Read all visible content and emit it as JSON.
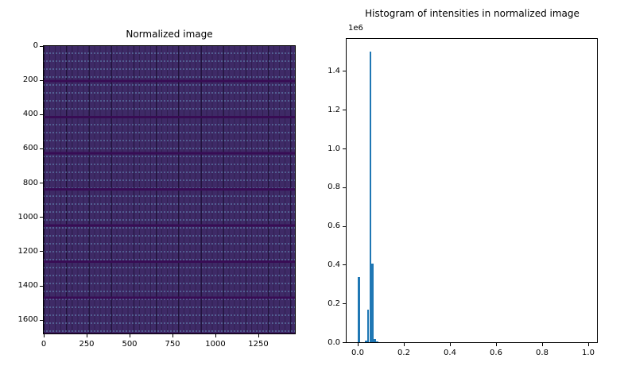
{
  "left_plot": {
    "title": "Normalized image",
    "x_tick_labels": [
      "0",
      "250",
      "500",
      "750",
      "1000",
      "1250"
    ],
    "y_tick_labels": [
      "0",
      "200",
      "400",
      "600",
      "800",
      "1000",
      "1200",
      "1400",
      "1600"
    ]
  },
  "right_plot": {
    "title": "Histogram of intensities in normalized image",
    "offset_label": "1e6",
    "x_tick_labels": [
      "0.0",
      "0.2",
      "0.4",
      "0.6",
      "0.8",
      "1.0"
    ],
    "y_tick_labels": [
      "0.0",
      "0.2",
      "0.4",
      "0.6",
      "0.8",
      "1.0",
      "1.2",
      "1.4"
    ]
  },
  "chart_data": [
    {
      "type": "heatmap",
      "title": "Normalized image",
      "xlabel": "",
      "ylabel": "",
      "xlim": [
        0,
        1460
      ],
      "ylim": [
        1680,
        0
      ],
      "x_ticks": [
        0,
        250,
        500,
        750,
        1000,
        1250
      ],
      "y_ticks": [
        0,
        200,
        400,
        600,
        800,
        1000,
        1200,
        1400,
        1600
      ],
      "description": "Dark purple low-intensity image (viridis colormap near 0.05): periodic grid texture with thin darker vertical lines every ~30 units, stronger vertical lines every ~130 units, dark horizontal bands every ~210 units, and a faint lattice of tiny light-blue dots",
      "colors": {
        "base": "#3e2a66",
        "thin_vline": "#31205a",
        "strong_vline": "#2a1850",
        "horizontal_band": "#380c54",
        "dots": "#6894be"
      }
    },
    {
      "type": "bar",
      "title": "Histogram of intensities in normalized image",
      "xlabel": "",
      "ylabel": "",
      "x": [
        0.0,
        0.03,
        0.04,
        0.05,
        0.06,
        0.07,
        0.08
      ],
      "values": [
        335000,
        8000,
        170000,
        1500000,
        405000,
        18000,
        6000
      ],
      "bin_width": 0.01,
      "bar_color": "#1f77b4",
      "xlim": [
        -0.05,
        1.05
      ],
      "ylim": [
        0,
        1570000
      ],
      "y_offset_factor": "1e6",
      "x_ticks": [
        0.0,
        0.2,
        0.4,
        0.6,
        0.8,
        1.0
      ],
      "y_ticks_1e6": [
        0.0,
        0.2,
        0.4,
        0.6,
        0.8,
        1.0,
        1.2,
        1.4
      ],
      "grid": false,
      "legend": "none"
    }
  ]
}
